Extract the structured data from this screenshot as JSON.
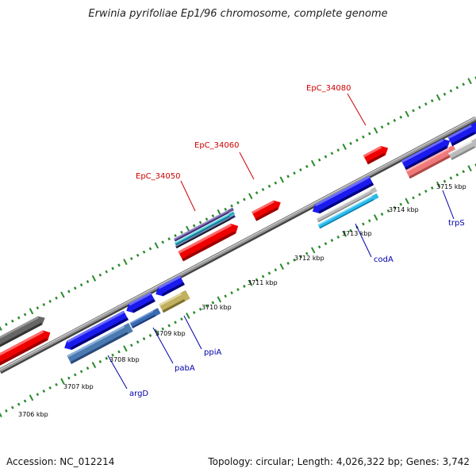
{
  "header": {
    "title": "Erwinia pyrifoliae Ep1/96 chromosome, complete genome"
  },
  "footer": {
    "accession": "Accession: NC_012214",
    "topology": "Topology: circular; Length: 4,026,322 bp; Genes: 3,742"
  },
  "scale": {
    "ticks": [
      {
        "label": "3706 kbp"
      },
      {
        "label": "3707 kbp"
      },
      {
        "label": "3708 kbp"
      },
      {
        "label": "3709 kbp"
      },
      {
        "label": "3710 kbp"
      },
      {
        "label": "3711 kbp"
      },
      {
        "label": "3712 kbp"
      },
      {
        "label": "3713 kbp"
      },
      {
        "label": "3714 kbp"
      },
      {
        "label": "3715 kbp"
      }
    ]
  },
  "gene_labels": {
    "top": [
      {
        "name": "EpC_34050"
      },
      {
        "name": "EpC_34060"
      },
      {
        "name": "EpC_34080"
      }
    ],
    "bottom": [
      {
        "name": "argD"
      },
      {
        "name": "pabA"
      },
      {
        "name": "ppiA"
      },
      {
        "name": "codA"
      },
      {
        "name": "trpS"
      }
    ]
  },
  "colors": {
    "backbone": "#8c8c8c",
    "forward_cds": "#ee0000",
    "reverse_cds": "#1a1aee",
    "tick": "#228822",
    "top_label": "#cc0000",
    "bottom_label": "#0000aa"
  }
}
